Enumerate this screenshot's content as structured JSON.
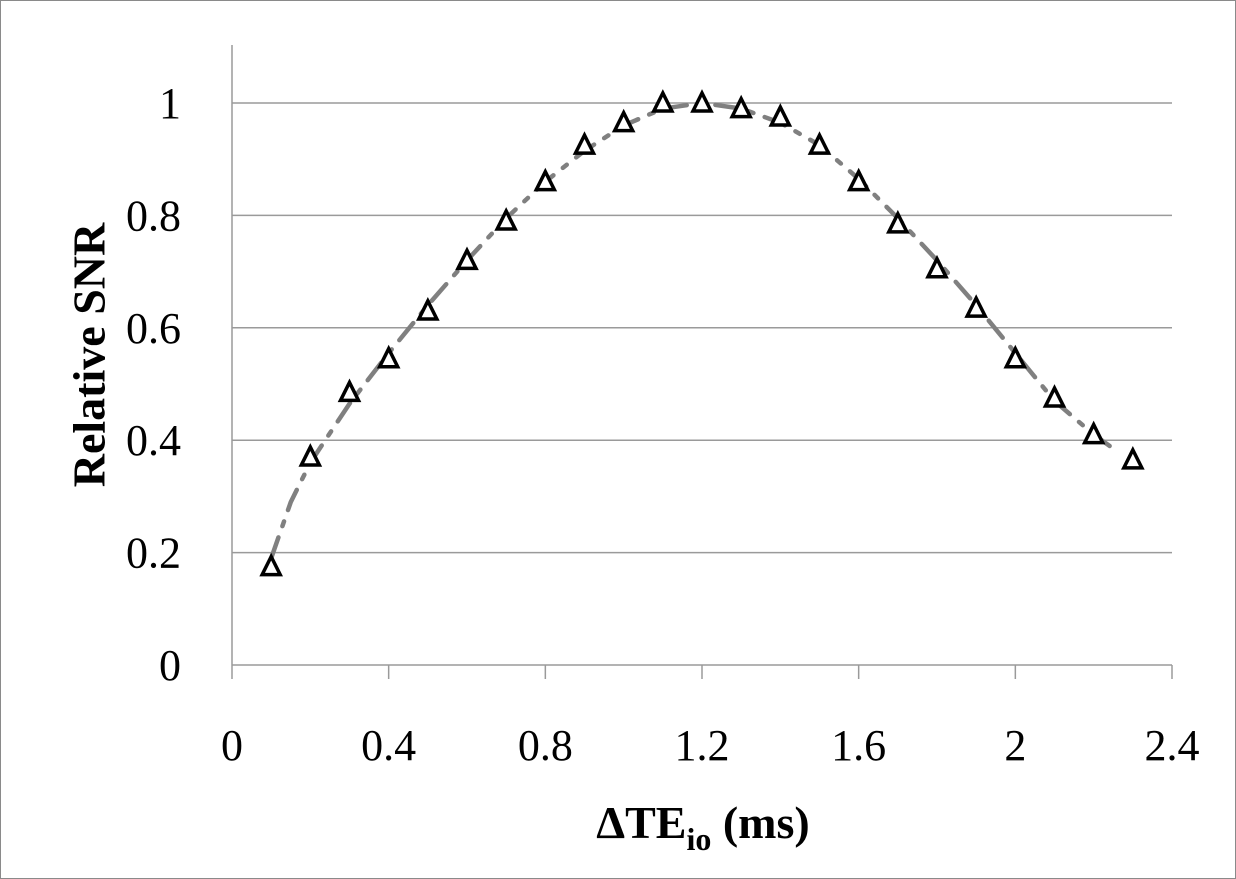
{
  "chart_data": {
    "type": "scatter",
    "xlabel": "ΔTE",
    "xlabel_subscript": "io",
    "xlabel_unit": " (ms)",
    "ylabel": "Relative SNR",
    "xlim": [
      0,
      2.4
    ],
    "ylim": [
      0,
      1
    ],
    "xticks": [
      "0",
      "0.4",
      "0.8",
      "1.2",
      "1.6",
      "2",
      "2.4"
    ],
    "yticks": [
      "0",
      "0.2",
      "0.4",
      "0.6",
      "0.8",
      "1"
    ],
    "grid": "horizontal",
    "series": [
      {
        "marker": "open-triangle",
        "x": [
          0.1,
          0.2,
          0.3,
          0.4,
          0.5,
          0.6,
          0.7,
          0.8,
          0.9,
          1.0,
          1.1,
          1.2,
          1.3,
          1.4,
          1.5,
          1.6,
          1.7,
          1.8,
          1.9,
          2.0,
          2.1,
          2.2,
          2.3
        ],
        "y": [
          0.175,
          0.37,
          0.485,
          0.545,
          0.63,
          0.72,
          0.79,
          0.86,
          0.925,
          0.965,
          1.0,
          1.0,
          0.99,
          0.975,
          0.925,
          0.86,
          0.785,
          0.705,
          0.635,
          0.545,
          0.475,
          0.41,
          0.365
        ]
      },
      {
        "style": "dash-dot line",
        "x": [
          0.1,
          0.15,
          0.2,
          0.3,
          0.4,
          0.5,
          0.6,
          0.7,
          0.8,
          0.9,
          1.0,
          1.1,
          1.2,
          1.3,
          1.4,
          1.5,
          1.6,
          1.7,
          1.8,
          1.9,
          2.0,
          2.1,
          2.2,
          2.25
        ],
        "y": [
          0.19,
          0.29,
          0.36,
          0.465,
          0.555,
          0.64,
          0.72,
          0.795,
          0.86,
          0.915,
          0.96,
          0.99,
          1.0,
          0.99,
          0.965,
          0.925,
          0.865,
          0.795,
          0.72,
          0.64,
          0.555,
          0.47,
          0.41,
          0.385
        ]
      }
    ],
    "colors": {
      "markers": "#000000",
      "fit_line": "#808080",
      "grid": "#9a9a9a"
    }
  }
}
